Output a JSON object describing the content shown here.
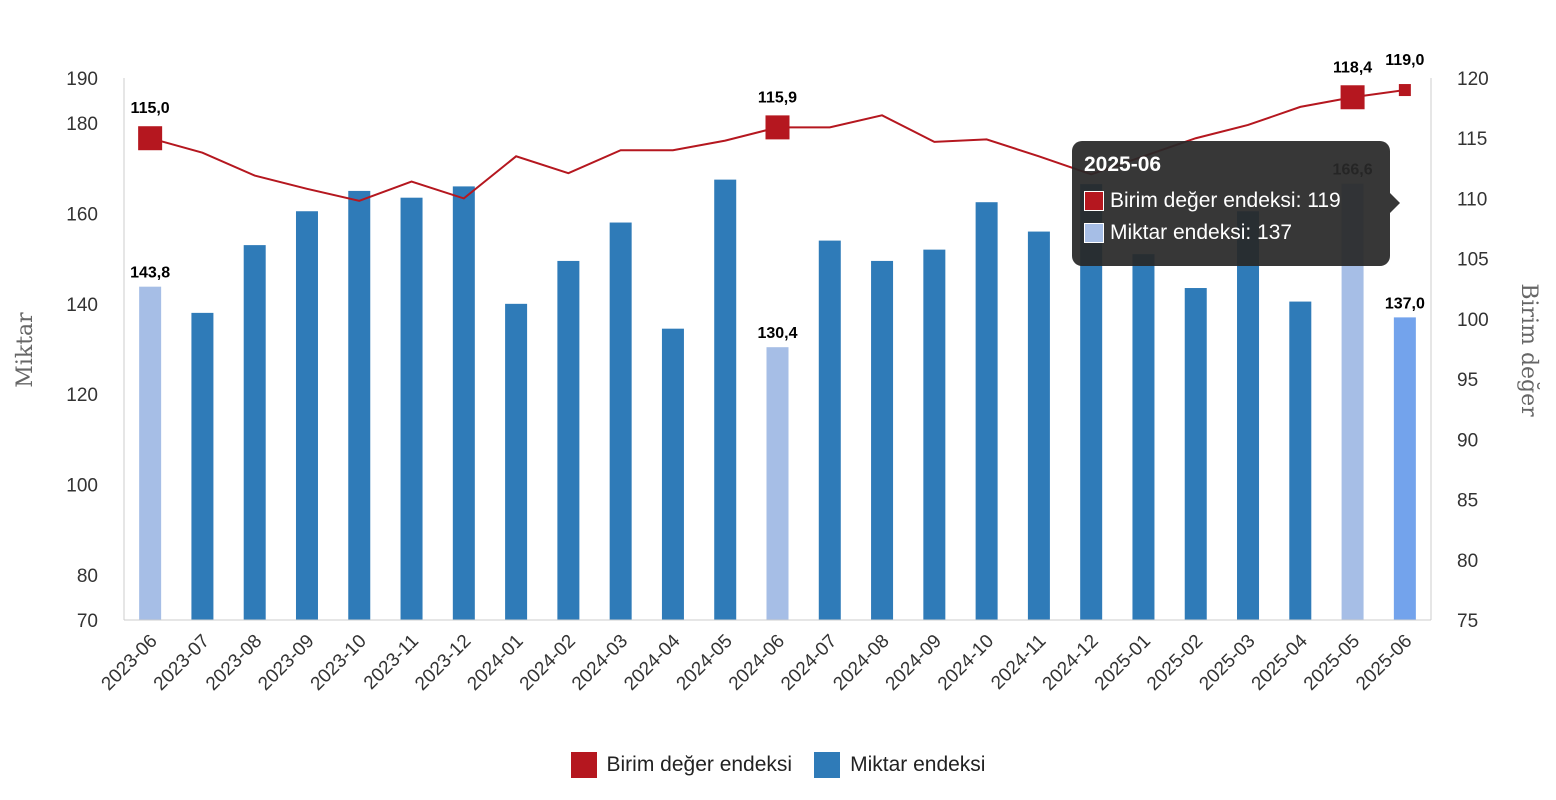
{
  "chart_data": {
    "type": "bar",
    "categories": [
      "2023-06",
      "2023-07",
      "2023-08",
      "2023-09",
      "2023-10",
      "2023-11",
      "2023-12",
      "2024-01",
      "2024-02",
      "2024-03",
      "2024-04",
      "2024-05",
      "2024-06",
      "2024-07",
      "2024-08",
      "2024-09",
      "2024-10",
      "2024-11",
      "2024-12",
      "2025-01",
      "2025-02",
      "2025-03",
      "2025-04",
      "2025-05",
      "2025-06"
    ],
    "series": [
      {
        "name": "Birim değer endeksi",
        "type": "line",
        "axis": "right",
        "color": "#b5171f",
        "values": [
          115.0,
          113.8,
          111.9,
          110.8,
          109.8,
          111.4,
          110.0,
          113.5,
          112.1,
          114.0,
          114.0,
          114.8,
          115.9,
          115.9,
          116.9,
          114.7,
          114.9,
          113.5,
          112.0,
          113.5,
          115.0,
          116.1,
          117.6,
          118.4,
          119.0
        ],
        "labels": {
          "0": "115,0",
          "12": "115,9",
          "23": "118,4",
          "24": "119,0"
        }
      },
      {
        "name": "Miktar endeksi",
        "type": "bar",
        "axis": "left",
        "color": "#2f7bb8",
        "highlight_color": "#a6bee6",
        "hover_color": "#73a3ec",
        "highlight_indices": [
          0,
          12,
          23
        ],
        "hover_index": 24,
        "values": [
          143.8,
          138.0,
          153.0,
          160.5,
          165.0,
          163.5,
          166.0,
          140.0,
          149.5,
          158.0,
          134.5,
          167.5,
          130.4,
          154.0,
          149.5,
          152.0,
          162.5,
          156.0,
          166.5,
          151.0,
          143.5,
          160.5,
          140.5,
          166.6,
          137.0
        ],
        "labels": {
          "0": "143,8",
          "12": "130,4",
          "23": "166,6",
          "24": "137,0"
        }
      }
    ],
    "ylabel_left": "Miktar",
    "ylabel_right": "Birim değer",
    "ylim_left": [
      70,
      190
    ],
    "yticks_left": [
      70,
      80,
      100,
      120,
      140,
      160,
      180,
      190
    ],
    "ylim_right": [
      75,
      120
    ],
    "yticks_right": [
      75,
      80,
      85,
      90,
      95,
      100,
      105,
      110,
      115,
      120
    ],
    "grid": false,
    "legend_position": "bottom-center"
  },
  "legend": {
    "items": [
      {
        "label": "Birim değer endeksi",
        "color": "#b5171f"
      },
      {
        "label": "Miktar endeksi",
        "color": "#2f7bb8"
      }
    ]
  },
  "tooltip": {
    "title": "2025-06",
    "rows": [
      {
        "label": "Birim değer endeksi: 119",
        "color": "#b5171f"
      },
      {
        "label": "Miktar endeksi: 137",
        "color": "#a6bee6"
      }
    ]
  }
}
